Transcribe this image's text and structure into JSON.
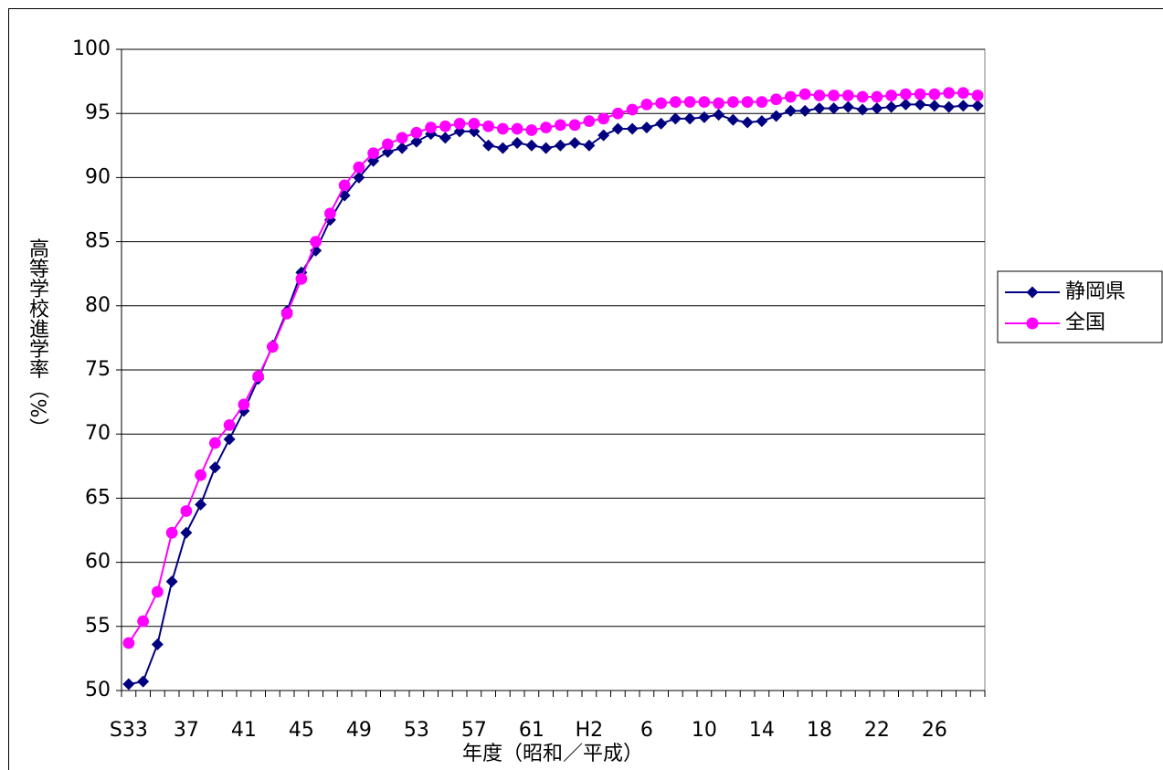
{
  "chart_data": {
    "type": "line",
    "ylabel": "高等学校進学率（%）",
    "xlabel": "年度（昭和／平成）",
    "categories": [
      "S33",
      null,
      null,
      null,
      "37",
      null,
      null,
      null,
      "41",
      null,
      null,
      null,
      "45",
      null,
      null,
      null,
      "49",
      null,
      null,
      null,
      "53",
      null,
      null,
      null,
      "57",
      null,
      null,
      null,
      "61",
      null,
      null,
      null,
      "H2",
      null,
      null,
      null,
      "6",
      null,
      null,
      null,
      "10",
      null,
      null,
      null,
      "14",
      null,
      null,
      null,
      "18",
      null,
      null,
      null,
      "22",
      null,
      null,
      null,
      "26",
      null,
      null,
      null
    ],
    "series": [
      {
        "name": "静岡県",
        "color": "#000080",
        "marker": "diamond",
        "values": [
          50.5,
          50.7,
          53.6,
          58.5,
          62.3,
          64.5,
          67.4,
          69.6,
          71.8,
          74.3,
          76.9,
          79.6,
          82.6,
          84.3,
          86.7,
          88.6,
          90.0,
          91.3,
          92.0,
          92.3,
          92.8,
          93.4,
          93.1,
          93.6,
          93.6,
          92.5,
          92.3,
          92.7,
          92.5,
          92.3,
          92.5,
          92.7,
          92.5,
          93.3,
          93.8,
          93.8,
          93.9,
          94.2,
          94.6,
          94.6,
          94.7,
          94.9,
          94.5,
          94.3,
          94.4,
          94.8,
          95.2,
          95.2,
          95.4,
          95.4,
          95.5,
          95.3,
          95.4,
          95.5,
          95.7,
          95.7,
          95.6,
          95.5,
          95.6,
          95.6
        ]
      },
      {
        "name": "全国",
        "color": "#ff00ff",
        "marker": "circle",
        "values": [
          53.7,
          55.4,
          57.7,
          62.3,
          64.0,
          66.8,
          69.3,
          70.7,
          72.3,
          74.5,
          76.8,
          79.4,
          82.1,
          85.0,
          87.2,
          89.4,
          90.8,
          91.9,
          92.6,
          93.1,
          93.5,
          93.9,
          94.0,
          94.2,
          94.2,
          94.0,
          93.8,
          93.8,
          93.7,
          93.9,
          94.1,
          94.1,
          94.4,
          94.6,
          95.0,
          95.3,
          95.7,
          95.8,
          95.9,
          95.9,
          95.9,
          95.8,
          95.9,
          95.9,
          95.9,
          96.1,
          96.3,
          96.5,
          96.4,
          96.4,
          96.4,
          96.3,
          96.3,
          96.4,
          96.5,
          96.5,
          96.5,
          96.6,
          96.6,
          96.4
        ]
      }
    ],
    "ylim": [
      50,
      100
    ],
    "yticks": [
      50,
      55,
      60,
      65,
      70,
      75,
      80,
      85,
      90,
      95,
      100
    ],
    "grid": true,
    "legend": "right"
  }
}
